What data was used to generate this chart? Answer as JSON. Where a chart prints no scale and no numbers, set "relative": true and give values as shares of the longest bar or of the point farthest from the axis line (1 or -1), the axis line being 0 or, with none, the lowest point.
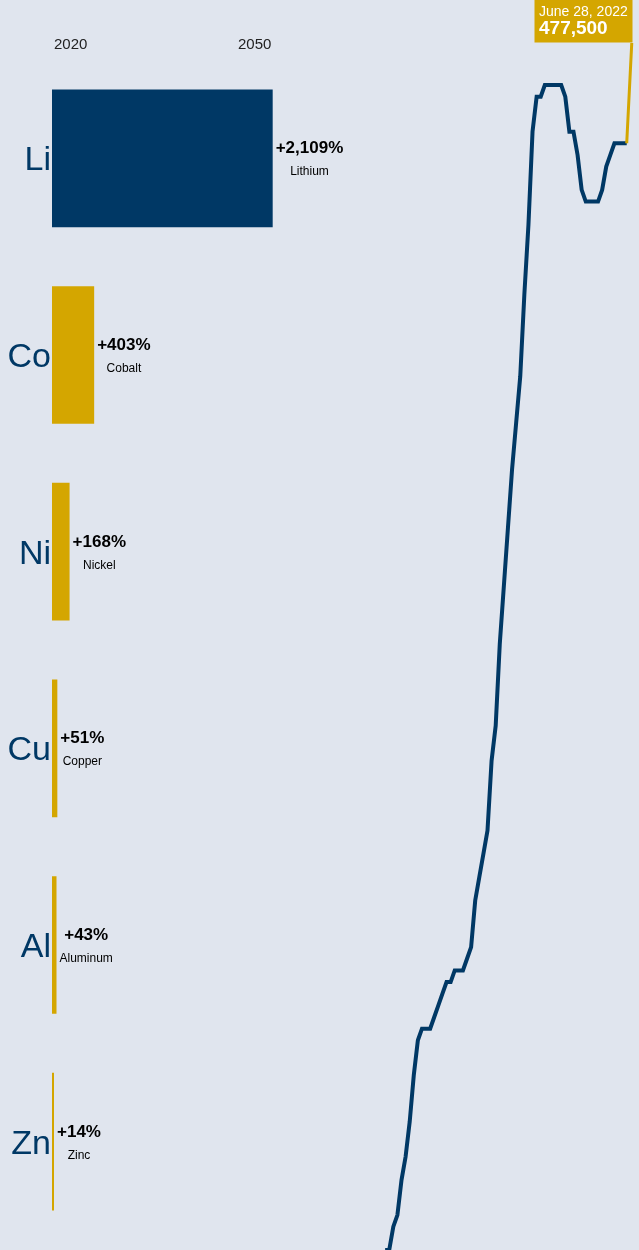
{
  "chart_data": [
    {
      "type": "bar",
      "orientation": "horizontal",
      "categories": [
        "Li",
        "Co",
        "Ni",
        "Cu",
        "Al",
        "Zn"
      ],
      "values": [
        2109,
        403,
        168,
        51,
        43,
        14
      ],
      "colors": [
        "#003865",
        "#d4a600",
        "#d4a600",
        "#d4a600",
        "#d4a600",
        "#d4a600"
      ],
      "value_labels": [
        "+2,109%\nLithium",
        "+403%\nCobalt",
        "+168%\nNickel",
        "+51%\nCopper",
        "+43%\nAluminum",
        "+14%\nZinc"
      ],
      "annotations": [
        "2050",
        "2020"
      ]
    },
    {
      "type": "line",
      "relative": true,
      "categories": [
        null,
        null,
        null,
        null,
        null,
        null,
        null,
        null,
        null,
        null,
        null,
        null,
        null,
        null,
        null,
        null,
        null,
        null,
        null,
        null,
        null,
        null,
        null,
        null,
        null,
        null,
        null,
        null,
        null,
        null,
        null,
        null,
        null,
        null,
        null,
        null,
        null,
        null,
        null,
        null,
        null,
        null,
        null,
        null,
        null,
        null,
        null,
        null,
        null,
        null,
        null,
        null,
        null,
        null,
        null,
        null,
        null,
        null,
        null,
        null
      ],
      "series": [
        {
          "color": "#003865",
          "values": [
            0,
            0,
            0.02,
            0.03,
            0.06,
            0.08,
            0.11,
            0.15,
            0.18,
            0.19,
            0.19,
            0.19,
            0.2,
            0.21,
            0.22,
            0.23,
            0.23,
            0.24,
            0.24,
            0.24,
            0.25,
            0.26,
            0.3,
            0.32,
            0.34,
            0.36,
            0.42,
            0.45,
            0.52,
            0.57,
            0.62,
            0.67,
            0.71,
            0.75,
            0.82,
            0.88,
            0.96,
            0.99,
            0.99,
            1,
            1,
            1,
            1,
            1,
            0.99,
            0.96,
            0.96,
            0.94,
            0.91,
            0.9,
            0.9,
            0.9,
            0.9,
            0.91,
            0.93,
            0.94,
            0.95,
            0.95,
            0.95,
            0.95
          ]
        }
      ],
      "annotations": [
        "June 28, 2022",
        "477,500"
      ],
      "marker": "none",
      "line_style": "solid",
      "grid": false,
      "legend": false
    }
  ]
}
